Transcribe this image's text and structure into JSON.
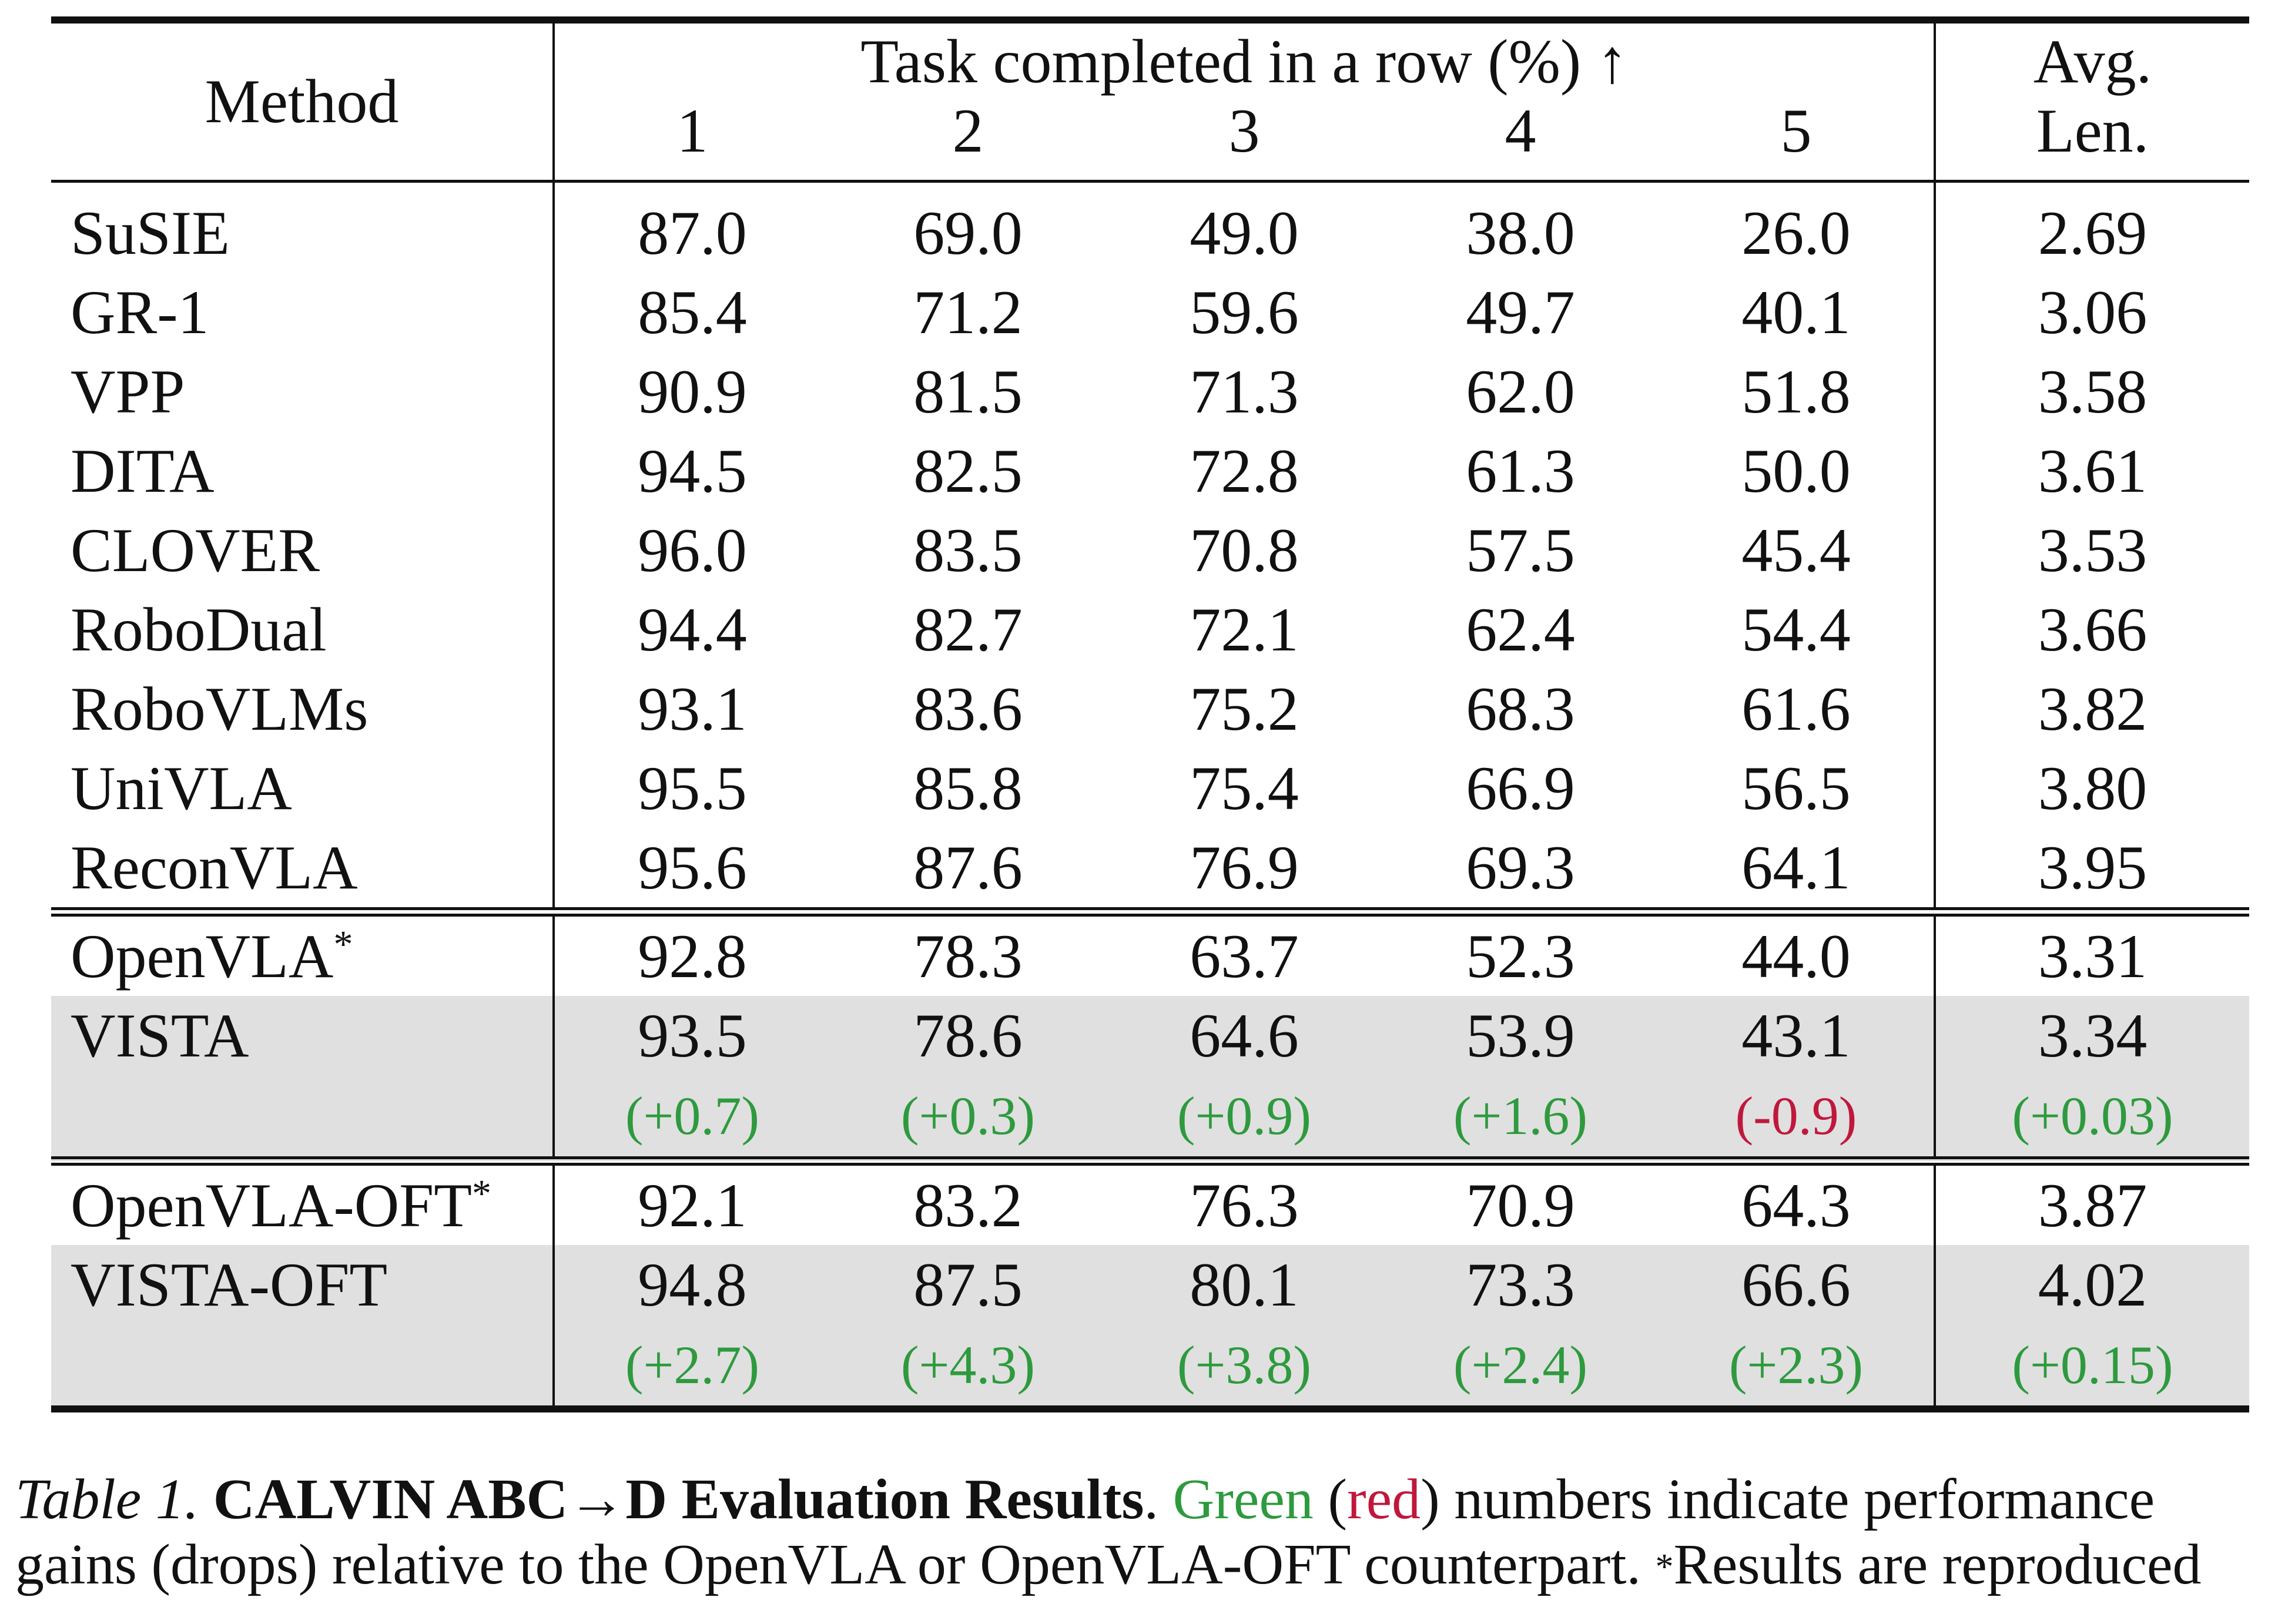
{
  "table": {
    "header": {
      "method": "Method",
      "group_title": "Task completed in a row (%) ↑",
      "task_columns": [
        "1",
        "2",
        "3",
        "4",
        "5"
      ],
      "avg_line1": "Avg.",
      "avg_line2": "Len."
    },
    "baseline_rows": [
      {
        "method": "SuSIE",
        "values": [
          "87.0",
          "69.0",
          "49.0",
          "38.0",
          "26.0"
        ],
        "avg": "2.69"
      },
      {
        "method": "GR-1",
        "values": [
          "85.4",
          "71.2",
          "59.6",
          "49.7",
          "40.1"
        ],
        "avg": "3.06"
      },
      {
        "method": "VPP",
        "values": [
          "90.9",
          "81.5",
          "71.3",
          "62.0",
          "51.8"
        ],
        "avg": "3.58"
      },
      {
        "method": "DITA",
        "values": [
          "94.5",
          "82.5",
          "72.8",
          "61.3",
          "50.0"
        ],
        "avg": "3.61"
      },
      {
        "method": "CLOVER",
        "values": [
          "96.0",
          "83.5",
          "70.8",
          "57.5",
          "45.4"
        ],
        "avg": "3.53"
      },
      {
        "method": "RoboDual",
        "values": [
          "94.4",
          "82.7",
          "72.1",
          "62.4",
          "54.4"
        ],
        "avg": "3.66"
      },
      {
        "method": "RoboVLMs",
        "values": [
          "93.1",
          "83.6",
          "75.2",
          "68.3",
          "61.6"
        ],
        "avg": "3.82"
      },
      {
        "method": "UniVLA",
        "values": [
          "95.5",
          "85.8",
          "75.4",
          "66.9",
          "56.5"
        ],
        "avg": "3.80"
      },
      {
        "method": "ReconVLA",
        "values": [
          "95.6",
          "87.6",
          "76.9",
          "69.3",
          "64.1"
        ],
        "avg": "3.95"
      }
    ],
    "group1": {
      "base": {
        "method": "OpenVLA",
        "star": "*",
        "values": [
          "92.8",
          "78.3",
          "63.7",
          "52.3",
          "44.0"
        ],
        "avg": "3.31"
      },
      "ours": {
        "method": "VISTA",
        "values": [
          "93.5",
          "78.6",
          "64.6",
          "53.9",
          "43.1"
        ],
        "avg": "3.34"
      },
      "deltas": [
        {
          "text": "(+0.7)",
          "sign": "pos"
        },
        {
          "text": "(+0.3)",
          "sign": "pos"
        },
        {
          "text": "(+0.9)",
          "sign": "pos"
        },
        {
          "text": "(+1.6)",
          "sign": "pos"
        },
        {
          "text": "(-0.9)",
          "sign": "neg"
        }
      ],
      "avg_delta": {
        "text": "(+0.03)",
        "sign": "pos"
      }
    },
    "group2": {
      "base": {
        "method": "OpenVLA-OFT",
        "star": "*",
        "values": [
          "92.1",
          "83.2",
          "76.3",
          "70.9",
          "64.3"
        ],
        "avg": "3.87"
      },
      "ours": {
        "method": "VISTA-OFT",
        "values": [
          "94.8",
          "87.5",
          "80.1",
          "73.3",
          "66.6"
        ],
        "avg": "4.02"
      },
      "deltas": [
        {
          "text": "(+2.7)",
          "sign": "pos"
        },
        {
          "text": "(+4.3)",
          "sign": "pos"
        },
        {
          "text": "(+3.8)",
          "sign": "pos"
        },
        {
          "text": "(+2.4)",
          "sign": "pos"
        },
        {
          "text": "(+2.3)",
          "sign": "pos"
        }
      ],
      "avg_delta": {
        "text": "(+0.15)",
        "sign": "pos"
      }
    }
  },
  "caption": {
    "label": "Table 1.",
    "title": "CALVIN ABC→D Evaluation Results",
    "title_end": ".",
    "green_word": "Green",
    "open_paren": "(",
    "red_word": "red",
    "line1_rest": ") numbers indicate performance",
    "line2": "gains (drops) relative to the OpenVLA or OpenVLA-OFT counterpart.",
    "star": "*",
    "line2_end": "Results are reproduced"
  },
  "colors": {
    "gain": "#2e9a3e",
    "drop": "#c0183c",
    "highlight_row": "#e0e0e0"
  }
}
